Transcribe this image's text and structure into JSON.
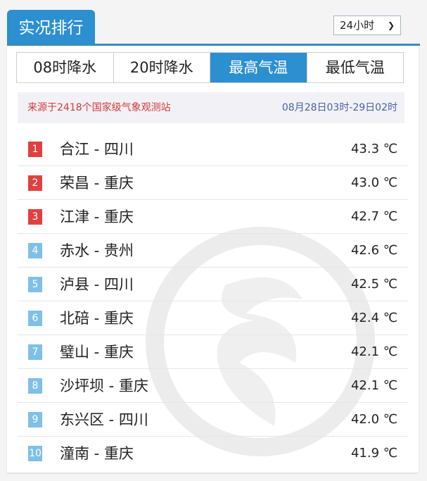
{
  "header": {
    "title": "实况排行",
    "period_select": "24小时"
  },
  "colors": {
    "accent": "#2b8fd0",
    "rank_top": "#e04040",
    "rank_other": "#7ec0e8"
  },
  "tabs": [
    {
      "label": "08时降水",
      "active": false
    },
    {
      "label": "20时降水",
      "active": false
    },
    {
      "label": "最高气温",
      "active": true
    },
    {
      "label": "最低气温",
      "active": false
    }
  ],
  "info": {
    "source": "来源于2418个国家级气象观测站",
    "time_range": "08月28日03时-29日02时"
  },
  "rows": [
    {
      "rank": "1",
      "name": "合江 - 四川",
      "value": "43.3 ℃"
    },
    {
      "rank": "2",
      "name": "荣昌 - 重庆",
      "value": "43.0 ℃"
    },
    {
      "rank": "3",
      "name": "江津 - 重庆",
      "value": "42.7 ℃"
    },
    {
      "rank": "4",
      "name": "赤水 - 贵州",
      "value": "42.6 ℃"
    },
    {
      "rank": "5",
      "name": "泸县 - 四川",
      "value": "42.5 ℃"
    },
    {
      "rank": "6",
      "name": "北碚 - 重庆",
      "value": "42.4 ℃"
    },
    {
      "rank": "7",
      "name": "璧山 - 重庆",
      "value": "42.1 ℃"
    },
    {
      "rank": "8",
      "name": "沙坪坝 - 重庆",
      "value": "42.1 ℃"
    },
    {
      "rank": "9",
      "name": "东兴区 - 四川",
      "value": "42.0 ℃"
    },
    {
      "rank": "10",
      "name": "潼南 - 重庆",
      "value": "41.9 ℃"
    }
  ]
}
